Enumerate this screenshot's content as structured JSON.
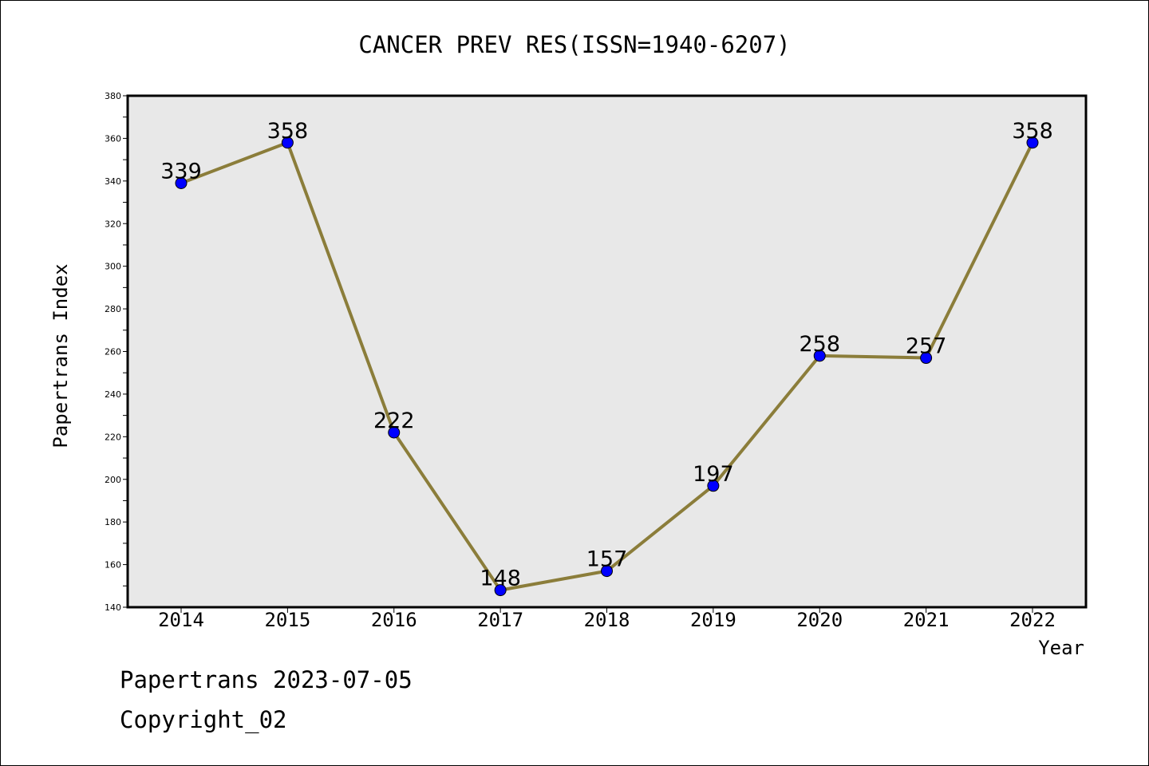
{
  "chart_data": {
    "type": "line",
    "title": "CANCER PREV RES(ISSN=1940-6207)",
    "xlabel": "Year",
    "ylabel": "Papertrans Index",
    "categories": [
      "2014",
      "2015",
      "2016",
      "2017",
      "2018",
      "2019",
      "2020",
      "2021",
      "2022"
    ],
    "series": [
      {
        "values": [
          339,
          358,
          222,
          148,
          157,
          197,
          258,
          257,
          358
        ]
      }
    ],
    "ylim": [
      140,
      380
    ],
    "yticks": [
      140,
      160,
      180,
      200,
      220,
      240,
      260,
      280,
      300,
      320,
      340,
      360,
      380
    ],
    "grid": false,
    "colors": {
      "line": "#8B7D3A",
      "marker": "#0000FF",
      "plot_background": "#E8E8E8"
    }
  },
  "footer": {
    "line1": "Papertrans 2023-07-05",
    "line2": "Copyright_02"
  }
}
